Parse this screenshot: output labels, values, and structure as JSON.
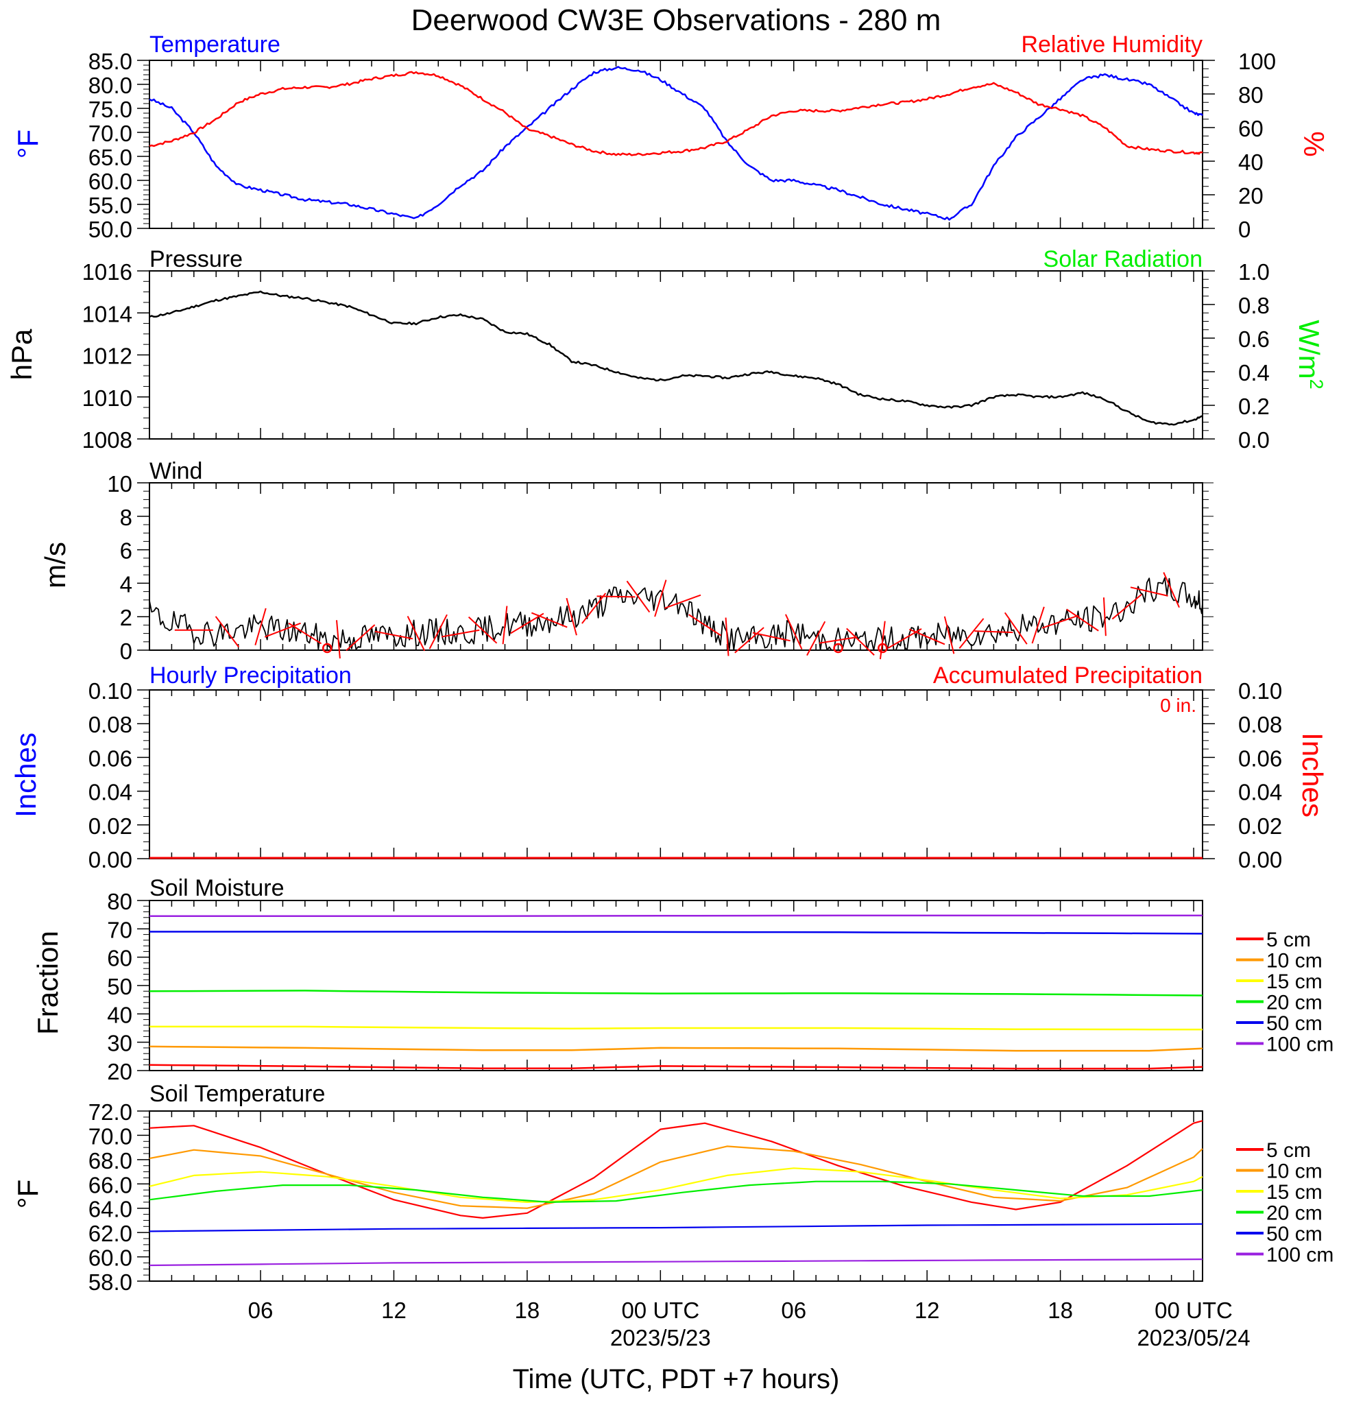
{
  "title": "Deerwood CW3E Observations - 280 m",
  "xaxis": {
    "label": "Time (UTC, PDT +7 hours)",
    "ticks": [
      "06",
      "12",
      "18",
      "00 UTC",
      "06",
      "12",
      "18",
      "00 UTC"
    ],
    "tick_hours": [
      6,
      12,
      18,
      24,
      30,
      36,
      42,
      48
    ],
    "dates": [
      {
        "text": "2023/5/23",
        "hour": 24
      },
      {
        "text": "2023/05/24",
        "hour": 48
      }
    ],
    "range_hours": [
      1,
      48.4
    ]
  },
  "colors": {
    "temperature": "#0000ff",
    "humidity": "#ff0000",
    "solar": "#00ee00",
    "black": "#000000",
    "depth_5": "#ff0000",
    "depth_10": "#ff9900",
    "depth_15": "#ffff00",
    "depth_20": "#00ee00",
    "depth_50": "#0000ee",
    "depth_100": "#9a20e0"
  },
  "panels": {
    "temp_rh": {
      "left_title": "Temperature",
      "right_title": "Relative Humidity",
      "left_unit": "°F",
      "right_unit": "%",
      "left_ticks": [
        "85.0",
        "80.0",
        "75.0",
        "70.0",
        "65.0",
        "60.0",
        "55.0",
        "50.0"
      ],
      "right_ticks": [
        "100",
        "80",
        "60",
        "40",
        "20",
        "0"
      ]
    },
    "pressure": {
      "left_title": "Pressure",
      "right_title": "Solar Radiation",
      "left_unit": "hPa",
      "right_unit": "W/m2",
      "left_ticks": [
        "1016",
        "1014",
        "1012",
        "1010",
        "1008"
      ],
      "right_ticks": [
        "1.0",
        "0.8",
        "0.6",
        "0.4",
        "0.2",
        "0.0"
      ]
    },
    "wind": {
      "title": "Wind",
      "unit": "m/s",
      "ticks": [
        "10",
        "8",
        "6",
        "4",
        "2",
        "0"
      ]
    },
    "precip": {
      "left_title": "Hourly Precipitation",
      "right_title": "Accumulated Precipitation",
      "accum_text": "0 in.",
      "left_unit": "Inches",
      "right_unit": "Inches",
      "left_ticks": [
        "0.10",
        "0.08",
        "0.06",
        "0.04",
        "0.02",
        "0.00"
      ],
      "right_ticks": [
        "0.10",
        "0.08",
        "0.06",
        "0.04",
        "0.02",
        "0.00"
      ]
    },
    "soil_moisture": {
      "title": "Soil Moisture",
      "unit": "Fraction",
      "ticks": [
        "80",
        "70",
        "60",
        "50",
        "40",
        "30",
        "20"
      ],
      "legend": [
        "5 cm",
        "10 cm",
        "15 cm",
        "20 cm",
        "50 cm",
        "100 cm"
      ]
    },
    "soil_temp": {
      "title": "Soil Temperature",
      "unit": "°F",
      "ticks": [
        "72.0",
        "70.0",
        "68.0",
        "66.0",
        "64.0",
        "62.0",
        "60.0",
        "58.0"
      ],
      "legend": [
        "5 cm",
        "10 cm",
        "15 cm",
        "20 cm",
        "50 cm",
        "100 cm"
      ]
    }
  },
  "chart_data": [
    {
      "type": "line",
      "title": "Temperature",
      "ylabel": "°F",
      "ylim": [
        50,
        85
      ],
      "x_units": "hours since 2023-05-22 00 UTC",
      "series": [
        {
          "name": "Temperature",
          "x": [
            1,
            2,
            3,
            4,
            5,
            6,
            7,
            8,
            9,
            10,
            11,
            12,
            13,
            14,
            15,
            16,
            17,
            18,
            19,
            20,
            21,
            22,
            23,
            24,
            25,
            26,
            27,
            28,
            29,
            30,
            31,
            32,
            33,
            34,
            35,
            36,
            37,
            38,
            39,
            40,
            41,
            42,
            43,
            44,
            45,
            46,
            47,
            48,
            48.4
          ],
          "y": [
            77,
            75,
            70,
            63,
            59,
            58,
            57,
            56,
            55.5,
            55,
            54,
            53,
            52,
            55,
            59,
            62,
            67,
            71,
            75,
            79,
            82.5,
            83.5,
            83,
            81,
            78,
            75,
            68,
            63,
            60,
            60,
            59,
            58,
            56.5,
            55,
            54,
            53,
            52,
            55,
            63,
            69,
            73,
            77,
            81,
            82,
            81,
            80,
            77,
            74,
            73.5
          ]
        }
      ]
    },
    {
      "type": "line",
      "title": "Relative Humidity",
      "ylabel": "%",
      "ylim": [
        0,
        100
      ],
      "x_units": "hours since 2023-05-22 00 UTC",
      "series": [
        {
          "name": "Relative Humidity",
          "x": [
            1,
            2,
            3,
            4,
            5,
            6,
            7,
            8,
            9,
            10,
            11,
            12,
            13,
            14,
            15,
            16,
            17,
            18,
            19,
            20,
            21,
            22,
            23,
            24,
            25,
            26,
            27,
            28,
            29,
            30,
            31,
            32,
            33,
            34,
            35,
            36,
            37,
            38,
            39,
            40,
            41,
            42,
            43,
            44,
            45,
            46,
            47,
            48,
            48.4
          ],
          "y": [
            49,
            52,
            57,
            65,
            75,
            80,
            83,
            84,
            84,
            86,
            89,
            91,
            93,
            91,
            85,
            77,
            69,
            59,
            55,
            50,
            46,
            44,
            44,
            45,
            46,
            48,
            52,
            59,
            67,
            70,
            70,
            70,
            72,
            74,
            75,
            77,
            80,
            84,
            86,
            81,
            74,
            71,
            67,
            60,
            49,
            47,
            46,
            45,
            45
          ]
        }
      ]
    },
    {
      "type": "line",
      "title": "Pressure",
      "ylabel": "hPa",
      "ylim": [
        1008,
        1016
      ],
      "x_units": "hours since 2023-05-22 00 UTC",
      "series": [
        {
          "name": "Pressure",
          "x": [
            1,
            2,
            3,
            4,
            5,
            6,
            7,
            8,
            9,
            10,
            11,
            12,
            13,
            14,
            15,
            16,
            17,
            18,
            19,
            20,
            21,
            22,
            23,
            24,
            25,
            26,
            27,
            28,
            29,
            30,
            31,
            32,
            33,
            34,
            35,
            36,
            37,
            38,
            39,
            40,
            41,
            42,
            43,
            44,
            45,
            46,
            47,
            48,
            48.4
          ],
          "y": [
            1013.8,
            1014,
            1014.3,
            1014.6,
            1014.8,
            1015,
            1014.8,
            1014.7,
            1014.5,
            1014.3,
            1013.9,
            1013.5,
            1013.5,
            1013.8,
            1013.9,
            1013.7,
            1013.1,
            1013,
            1012.5,
            1011.7,
            1011.5,
            1011.2,
            1010.9,
            1010.8,
            1011,
            1011,
            1010.9,
            1011.1,
            1011.2,
            1011,
            1010.9,
            1010.6,
            1010.1,
            1009.9,
            1009.8,
            1009.6,
            1009.5,
            1009.6,
            1010,
            1010.1,
            1010,
            1010,
            1010.2,
            1009.9,
            1009.3,
            1008.8,
            1008.7,
            1008.9,
            1009.1
          ]
        }
      ]
    },
    {
      "type": "line",
      "title": "Wind",
      "ylabel": "m/s",
      "ylim": [
        0,
        10
      ],
      "x_units": "hours since 2023-05-22 00 UTC",
      "series": [
        {
          "name": "Wind",
          "x": [
            1,
            2,
            3,
            4,
            5,
            6,
            7,
            8,
            9,
            10,
            11,
            12,
            13,
            14,
            15,
            16,
            17,
            18,
            19,
            20,
            21,
            22,
            23,
            24,
            25,
            26,
            27,
            28,
            29,
            30,
            31,
            32,
            33,
            34,
            35,
            36,
            37,
            38,
            39,
            40,
            41,
            42,
            43,
            44,
            45,
            46,
            47,
            48,
            48.4
          ],
          "y": [
            2.2,
            1.6,
            1.2,
            1.0,
            1.2,
            1.4,
            1.2,
            1.0,
            0.6,
            0.7,
            0.8,
            0.9,
            1.0,
            1.1,
            1.0,
            1.2,
            1.5,
            1.6,
            1.8,
            2.0,
            2.5,
            3.2,
            3.2,
            3.1,
            2.9,
            1.5,
            0.8,
            0.6,
            0.8,
            1.1,
            0.7,
            0.6,
            0.5,
            0.6,
            0.7,
            0.8,
            0.9,
            1.0,
            1.1,
            1.3,
            1.5,
            1.7,
            1.8,
            2.0,
            2.6,
            3.5,
            3.6,
            3.1,
            2.8
          ]
        }
      ]
    },
    {
      "type": "line",
      "title": "Hourly Precipitation",
      "ylabel": "Inches",
      "ylim": [
        0,
        0.1
      ],
      "series": [
        {
          "name": "Hourly Precipitation",
          "x": [
            1,
            48.4
          ],
          "y": [
            0,
            0
          ]
        },
        {
          "name": "Accumulated Precipitation",
          "x": [
            1,
            48.4
          ],
          "y": [
            0,
            0
          ]
        }
      ]
    },
    {
      "type": "line",
      "title": "Soil Moisture",
      "ylabel": "Fraction",
      "ylim": [
        20,
        80
      ],
      "x_units": "hours since 2023-05-22 00 UTC",
      "series": [
        {
          "name": "5 cm",
          "x": [
            1,
            8,
            16,
            20,
            24,
            32,
            40,
            46,
            48.4
          ],
          "y": [
            22,
            21.5,
            20.8,
            20.8,
            21.6,
            21.2,
            20.7,
            20.7,
            21.3
          ]
        },
        {
          "name": "10 cm",
          "x": [
            1,
            8,
            16,
            20,
            24,
            32,
            40,
            46,
            48.4
          ],
          "y": [
            28.5,
            28,
            27.2,
            27.2,
            28,
            27.8,
            27,
            27,
            27.8
          ]
        },
        {
          "name": "15 cm",
          "x": [
            1,
            8,
            16,
            20,
            24,
            32,
            40,
            46,
            48.4
          ],
          "y": [
            35.5,
            35.5,
            35,
            34.8,
            35,
            35,
            34.6,
            34.5,
            34.5
          ]
        },
        {
          "name": "20 cm",
          "x": [
            1,
            8,
            16,
            24,
            32,
            40,
            48.4
          ],
          "y": [
            48,
            48.2,
            47.5,
            47.2,
            47.3,
            47,
            46.5
          ]
        },
        {
          "name": "50 cm",
          "x": [
            1,
            16,
            32,
            48.4
          ],
          "y": [
            69,
            69,
            68.8,
            68.3
          ]
        },
        {
          "name": "100 cm",
          "x": [
            1,
            16,
            32,
            48.4
          ],
          "y": [
            74.5,
            74.5,
            74.7,
            74.7
          ]
        }
      ]
    },
    {
      "type": "line",
      "title": "Soil Temperature",
      "ylabel": "°F",
      "ylim": [
        58,
        72
      ],
      "x_units": "hours since 2023-05-22 00 UTC",
      "series": [
        {
          "name": "5 cm",
          "x": [
            1,
            3,
            6,
            9,
            12,
            15,
            16,
            18,
            21,
            24,
            26,
            29,
            32,
            35,
            38,
            40,
            42,
            45,
            48,
            48.4
          ],
          "y": [
            70.6,
            70.8,
            69,
            66.8,
            64.7,
            63.4,
            63.2,
            63.6,
            66.5,
            70.5,
            71,
            69.5,
            67.5,
            65.8,
            64.5,
            63.9,
            64.5,
            67.5,
            71,
            71.2
          ]
        },
        {
          "name": "10 cm",
          "x": [
            1,
            3,
            6,
            9,
            12,
            15,
            18,
            21,
            24,
            27,
            30,
            33,
            36,
            39,
            42,
            45,
            48,
            48.4
          ],
          "y": [
            68.1,
            68.8,
            68.3,
            66.8,
            65.3,
            64.2,
            64,
            65.2,
            67.8,
            69.1,
            68.7,
            67.6,
            66.2,
            64.9,
            64.6,
            65.7,
            68.2,
            68.9
          ]
        },
        {
          "name": "15 cm",
          "x": [
            1,
            3,
            6,
            9,
            12,
            15,
            18,
            21,
            24,
            27,
            30,
            33,
            36,
            39,
            42,
            45,
            48,
            48.4
          ],
          "y": [
            65.8,
            66.7,
            67,
            66.6,
            65.8,
            64.9,
            64.5,
            64.7,
            65.5,
            66.7,
            67.3,
            67,
            66.3,
            65.5,
            64.8,
            65.1,
            66.2,
            66.6
          ]
        },
        {
          "name": "20 cm",
          "x": [
            1,
            4,
            7,
            10,
            13,
            16,
            19,
            22,
            25,
            28,
            31,
            34,
            37,
            40,
            43,
            46,
            48.4
          ],
          "y": [
            64.7,
            65.4,
            65.9,
            65.9,
            65.5,
            64.9,
            64.5,
            64.6,
            65.3,
            65.9,
            66.2,
            66.2,
            66,
            65.5,
            65,
            65,
            65.5
          ]
        },
        {
          "name": "50 cm",
          "x": [
            1,
            12,
            24,
            36,
            48.4
          ],
          "y": [
            62.1,
            62.3,
            62.4,
            62.6,
            62.7
          ]
        },
        {
          "name": "100 cm",
          "x": [
            1,
            12,
            24,
            36,
            48.4
          ],
          "y": [
            59.3,
            59.5,
            59.6,
            59.7,
            59.8
          ]
        }
      ]
    }
  ]
}
